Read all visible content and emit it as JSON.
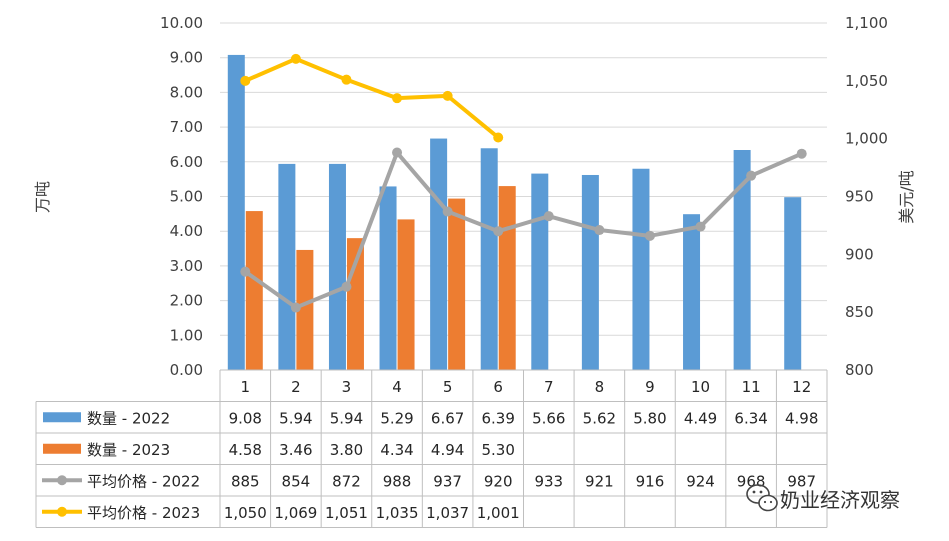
{
  "chart_data": {
    "type": "bar",
    "categories": [
      "1",
      "2",
      "3",
      "4",
      "5",
      "6",
      "7",
      "8",
      "9",
      "10",
      "11",
      "12"
    ],
    "ylabel": "万吨",
    "y2label": "美元/吨",
    "ylim": [
      0,
      10
    ],
    "y2lim": [
      800,
      1100
    ],
    "yticks": [
      "0.00",
      "1.00",
      "2.00",
      "3.00",
      "4.00",
      "5.00",
      "6.00",
      "7.00",
      "8.00",
      "9.00",
      "10.00"
    ],
    "y2ticks": [
      "800",
      "850",
      "900",
      "950",
      "1,000",
      "1,050",
      "1,100"
    ],
    "grid": true,
    "data_table": true,
    "series": [
      {
        "name": "数量 - 2022",
        "type": "bar",
        "axis": "left",
        "color": "#5b9bd5",
        "values": [
          9.08,
          5.94,
          5.94,
          5.29,
          6.67,
          6.39,
          5.66,
          5.62,
          5.8,
          4.49,
          6.34,
          4.98
        ],
        "labels": [
          "9.08",
          "5.94",
          "5.94",
          "5.29",
          "6.67",
          "6.39",
          "5.66",
          "5.62",
          "5.80",
          "4.49",
          "6.34",
          "4.98"
        ]
      },
      {
        "name": "数量 - 2023",
        "type": "bar",
        "axis": "left",
        "color": "#ed7d31",
        "values": [
          4.58,
          3.46,
          3.8,
          4.34,
          4.94,
          5.3,
          null,
          null,
          null,
          null,
          null,
          null
        ],
        "labels": [
          "4.58",
          "3.46",
          "3.80",
          "4.34",
          "4.94",
          "5.30",
          "",
          "",
          "",
          "",
          "",
          ""
        ]
      },
      {
        "name": "平均价格 - 2022",
        "type": "line",
        "axis": "right",
        "color": "#a5a5a5",
        "values": [
          885,
          854,
          872,
          988,
          937,
          920,
          933,
          921,
          916,
          924,
          968,
          987
        ],
        "labels": [
          "885",
          "854",
          "872",
          "988",
          "937",
          "920",
          "933",
          "921",
          "916",
          "924",
          "968",
          "987"
        ]
      },
      {
        "name": "平均价格 - 2023",
        "type": "line",
        "axis": "right",
        "color": "#ffc000",
        "values": [
          1050,
          1069,
          1051,
          1035,
          1037,
          1001,
          null,
          null,
          null,
          null,
          null,
          null
        ],
        "labels": [
          "1,050",
          "1,069",
          "1,051",
          "1,035",
          "1,037",
          "1,001",
          "",
          "",
          "",
          "",
          "",
          ""
        ]
      }
    ]
  },
  "watermark": {
    "text": "奶业经济观察",
    "icon": "wechat-icon"
  }
}
